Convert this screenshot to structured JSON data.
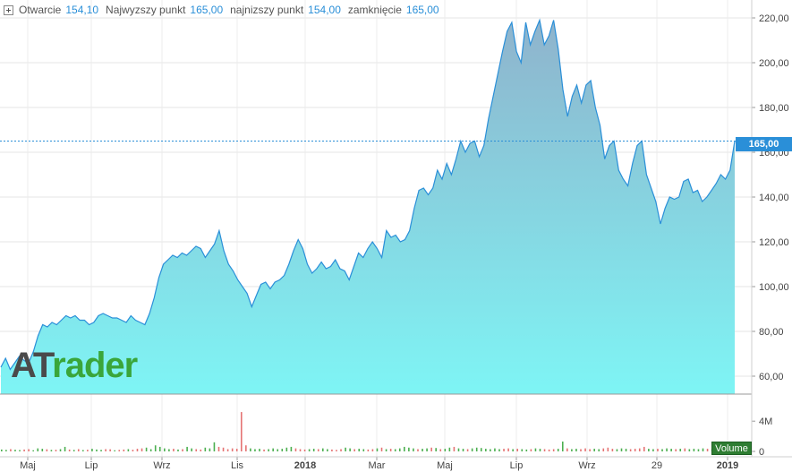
{
  "ohlc_bar": {
    "open_label": "Otwarcie",
    "open_value": "154,10",
    "high_label": "Najwyzszy punkt",
    "high_value": "165,00",
    "low_label": "najnizszy punkt",
    "low_value": "154,00",
    "close_label": "zamknięcie",
    "close_value": "165,00"
  },
  "logo": {
    "part1": "AT",
    "part2": "rader"
  },
  "last_price_tag": "165,00",
  "volume_label": "Volume",
  "colors": {
    "line": "#2a8fd8",
    "fill_top": "#8fb3cc",
    "fill_bottom": "#7ef5f5",
    "vol_up": "#4caf50",
    "vol_down": "#e57373",
    "accent": "#2a8fd8"
  },
  "chart_data": {
    "type": "area",
    "price_axis": {
      "ylim": [
        52,
        228
      ],
      "ticks": [
        "60,00",
        "80,00",
        "100,00",
        "120,00",
        "140,00",
        "160,00",
        "180,00",
        "200,00",
        "220,00"
      ],
      "tick_values": [
        60,
        80,
        100,
        120,
        140,
        160,
        180,
        200,
        220
      ]
    },
    "volume_axis": {
      "ticks": [
        "0",
        "4M"
      ],
      "tick_values": [
        0,
        4
      ]
    },
    "x_ticks": [
      "Maj",
      "Lip",
      "Wrz",
      "Lis",
      "2018",
      "Mar",
      "Maj",
      "Lip",
      "Wrz",
      "29",
      "2019"
    ],
    "x_tick_bold": [
      "2018",
      "2019"
    ],
    "series": [
      {
        "values": [
          64,
          68,
          63,
          66,
          69,
          67,
          66,
          71,
          78,
          83,
          82,
          84,
          83,
          85,
          87,
          86,
          87,
          85,
          85,
          83,
          84,
          87,
          88,
          87,
          86,
          86,
          85,
          84,
          87,
          85,
          84,
          83,
          88,
          95,
          104,
          110,
          112,
          114,
          113,
          115,
          114,
          116,
          118,
          117,
          113,
          116,
          119,
          125,
          116,
          110,
          107,
          103,
          100,
          97,
          91,
          96,
          101,
          102,
          99,
          102,
          103,
          105,
          110,
          116,
          121,
          117,
          110,
          106,
          108,
          111,
          108,
          109,
          112,
          108,
          107,
          103,
          109,
          115,
          113,
          117,
          120,
          117,
          113,
          125,
          122,
          123,
          120,
          121,
          125,
          135,
          143,
          144,
          141,
          144,
          152,
          148,
          155,
          150,
          157,
          165,
          160,
          164,
          165,
          158,
          163,
          175,
          185,
          195,
          205,
          214,
          218,
          205,
          200,
          218,
          208,
          214,
          219,
          208,
          212,
          219,
          206,
          188,
          176,
          185,
          190,
          182,
          190,
          192,
          180,
          172,
          157,
          163,
          165,
          152,
          148,
          145,
          155,
          163,
          165,
          150,
          144,
          138,
          128,
          135,
          140,
          139,
          140,
          147,
          148,
          142,
          143,
          138,
          140,
          143,
          146,
          150,
          148,
          152,
          165
        ]
      }
    ],
    "volume": [
      0.25,
      0.2,
      0.3,
      0.22,
      0.18,
      0.25,
      0.3,
      0.15,
      0.4,
      0.35,
      0.28,
      0.2,
      0.22,
      0.3,
      0.6,
      0.25,
      0.2,
      0.3,
      0.18,
      0.22,
      0.35,
      0.25,
      0.2,
      0.3,
      0.28,
      0.15,
      0.2,
      0.25,
      0.3,
      0.22,
      0.35,
      0.4,
      0.5,
      0.3,
      0.8,
      0.6,
      0.4,
      0.3,
      0.35,
      0.25,
      0.3,
      0.6,
      0.4,
      0.3,
      0.25,
      0.5,
      0.4,
      1.2,
      0.6,
      0.5,
      0.3,
      0.4,
      0.35,
      5.2,
      0.8,
      0.4,
      0.3,
      0.35,
      0.25,
      0.3,
      0.4,
      0.3,
      0.35,
      0.5,
      0.6,
      0.4,
      0.3,
      0.25,
      0.3,
      0.35,
      0.3,
      0.4,
      0.3,
      0.25,
      0.2,
      0.3,
      0.5,
      0.4,
      0.3,
      0.35,
      0.3,
      0.25,
      0.3,
      0.4,
      0.5,
      0.3,
      0.35,
      0.3,
      0.4,
      0.6,
      0.5,
      0.4,
      0.3,
      0.35,
      0.4,
      0.5,
      0.45,
      0.3,
      0.35,
      0.5,
      0.6,
      0.4,
      0.35,
      0.3,
      0.4,
      0.5,
      0.45,
      0.35,
      0.3,
      0.4,
      0.3,
      0.35,
      0.4,
      0.3,
      0.35,
      0.3,
      0.25,
      0.3,
      0.4,
      0.35,
      0.3,
      0.25,
      0.3,
      0.35,
      1.3,
      0.4,
      0.3,
      0.35,
      0.3,
      0.4,
      0.3,
      0.35,
      0.3,
      0.4,
      0.5,
      0.35,
      0.3,
      0.4,
      0.35,
      0.3,
      0.35,
      0.4,
      0.6,
      0.35,
      0.3,
      0.35,
      0.3,
      0.4,
      0.35,
      0.3,
      0.35,
      0.4,
      0.3,
      0.35,
      0.3,
      0.4,
      0.35,
      0.3,
      0.4,
      0.35,
      0.3
    ]
  }
}
